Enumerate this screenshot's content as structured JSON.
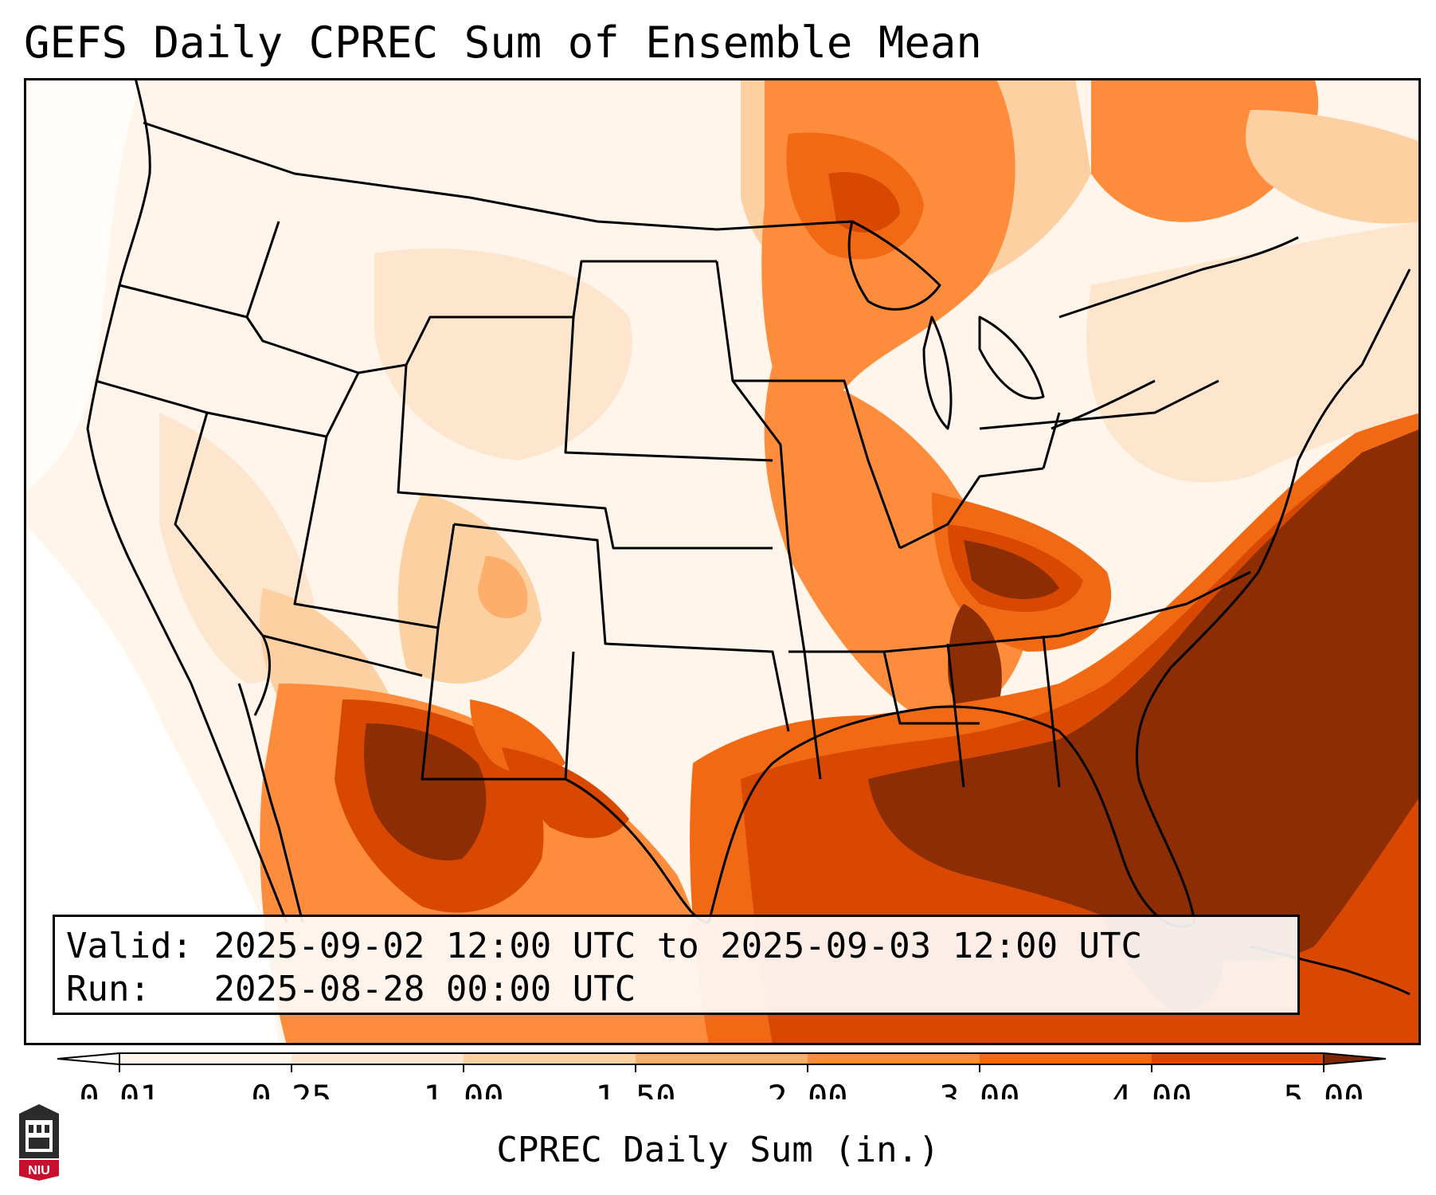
{
  "title": "GEFS Daily CPREC Sum of Ensemble Mean",
  "info": {
    "valid_label": "Valid:",
    "valid_value": "2025-09-02 12:00 UTC to 2025-09-03 12:00 UTC",
    "run_label": "Run:",
    "run_value": "2025-08-28 00:00 UTC"
  },
  "colorbar": {
    "label": "CPREC Daily Sum (in.)",
    "ticks": [
      "0.01",
      "0.25",
      "1.00",
      "1.50",
      "2.00",
      "3.00",
      "4.00",
      "5.00"
    ],
    "colors": [
      "#fff5eb",
      "#fee6ce",
      "#fdd0a2",
      "#fdae6b",
      "#fd8d3c",
      "#f16913",
      "#d94801",
      "#8c2d04"
    ],
    "under_color": "#ffffff",
    "over_color": "#7f2704"
  },
  "map": {
    "region": "CONUS",
    "heavy_color": "#8c2d04",
    "border_color": "#000000"
  },
  "logo": {
    "text": "NIU",
    "color": "#c8102e"
  }
}
